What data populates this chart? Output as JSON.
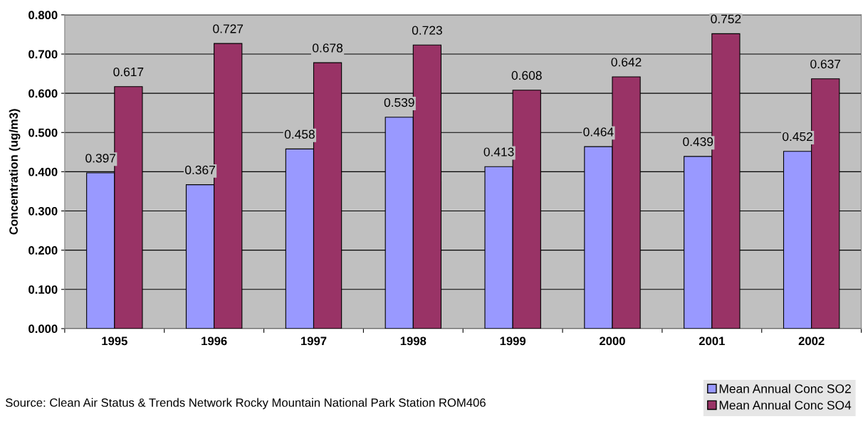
{
  "chart_data": {
    "type": "bar",
    "ylabel": "Concentration (ug/m3)",
    "categories": [
      "1995",
      "1996",
      "1997",
      "1998",
      "1999",
      "2000",
      "2001",
      "2002"
    ],
    "series": [
      {
        "name": "Mean Annual Conc SO2",
        "color": "#9999ff",
        "values": [
          0.397,
          0.367,
          0.458,
          0.539,
          0.413,
          0.464,
          0.439,
          0.452
        ]
      },
      {
        "name": "Mean Annual Conc SO4",
        "color": "#993366",
        "values": [
          0.617,
          0.727,
          0.678,
          0.723,
          0.608,
          0.642,
          0.752,
          0.637
        ]
      }
    ],
    "ylim": [
      0,
      0.8
    ],
    "yticks": [
      {
        "value": 0,
        "label": "0.000"
      },
      {
        "value": 0.1,
        "label": "0.100"
      },
      {
        "value": 0.2,
        "label": "0.200"
      },
      {
        "value": 0.3,
        "label": "0.300"
      },
      {
        "value": 0.4,
        "label": "0.400"
      },
      {
        "value": 0.5,
        "label": "0.500"
      },
      {
        "value": 0.6,
        "label": "0.600"
      },
      {
        "value": 0.7,
        "label": "0.700"
      },
      {
        "value": 0.8,
        "label": "0.800"
      }
    ],
    "grid": "y",
    "data_labels": true,
    "legend": "bottom right",
    "annotations": [
      "Source: Clean Air Status & Trends Network Rocky Mountain National Park Station ROM406"
    ]
  }
}
